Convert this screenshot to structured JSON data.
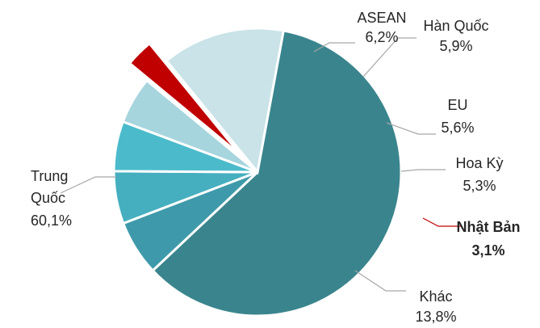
{
  "chart_data": {
    "type": "pie",
    "title": "",
    "slices": [
      {
        "name": "Trung Quốc",
        "label_lines": [
          "Trung",
          "Quốc",
          "60,1%"
        ],
        "value": 60.1,
        "value_label": "60,1%",
        "color": "#3A858D"
      },
      {
        "name": "ASEAN",
        "label_lines": [
          "ASEAN",
          "6,2%"
        ],
        "value": 6.2,
        "value_label": "6,2%",
        "color": "#3E9AAA"
      },
      {
        "name": "Hàn Quốc",
        "label_lines": [
          "Hàn Quốc",
          "5,9%"
        ],
        "value": 5.9,
        "value_label": "5,9%",
        "color": "#45AFBF"
      },
      {
        "name": "EU",
        "label_lines": [
          "EU",
          "5,6%"
        ],
        "value": 5.6,
        "value_label": "5,6%",
        "color": "#4BBBCB"
      },
      {
        "name": "Hoa Kỳ",
        "label_lines": [
          "Hoa Kỳ",
          "5,3%"
        ],
        "value": 5.3,
        "value_label": "5,3%",
        "color": "#A7D5DE"
      },
      {
        "name": "Nhật Bản",
        "label_lines": [
          "Nhật Bản",
          "3,1%"
        ],
        "value": 3.1,
        "value_label": "3,1%",
        "color": "#C00000",
        "highlight": true,
        "label_color": "#C00000"
      },
      {
        "name": "Khác",
        "label_lines": [
          "Khác",
          "13,8%"
        ],
        "value": 13.8,
        "value_label": "13,8%",
        "color": "#C9E3E8"
      }
    ],
    "legend": "none",
    "label_style": "outside with leader lines",
    "exploded": [
      "Nhật Bản"
    ]
  }
}
